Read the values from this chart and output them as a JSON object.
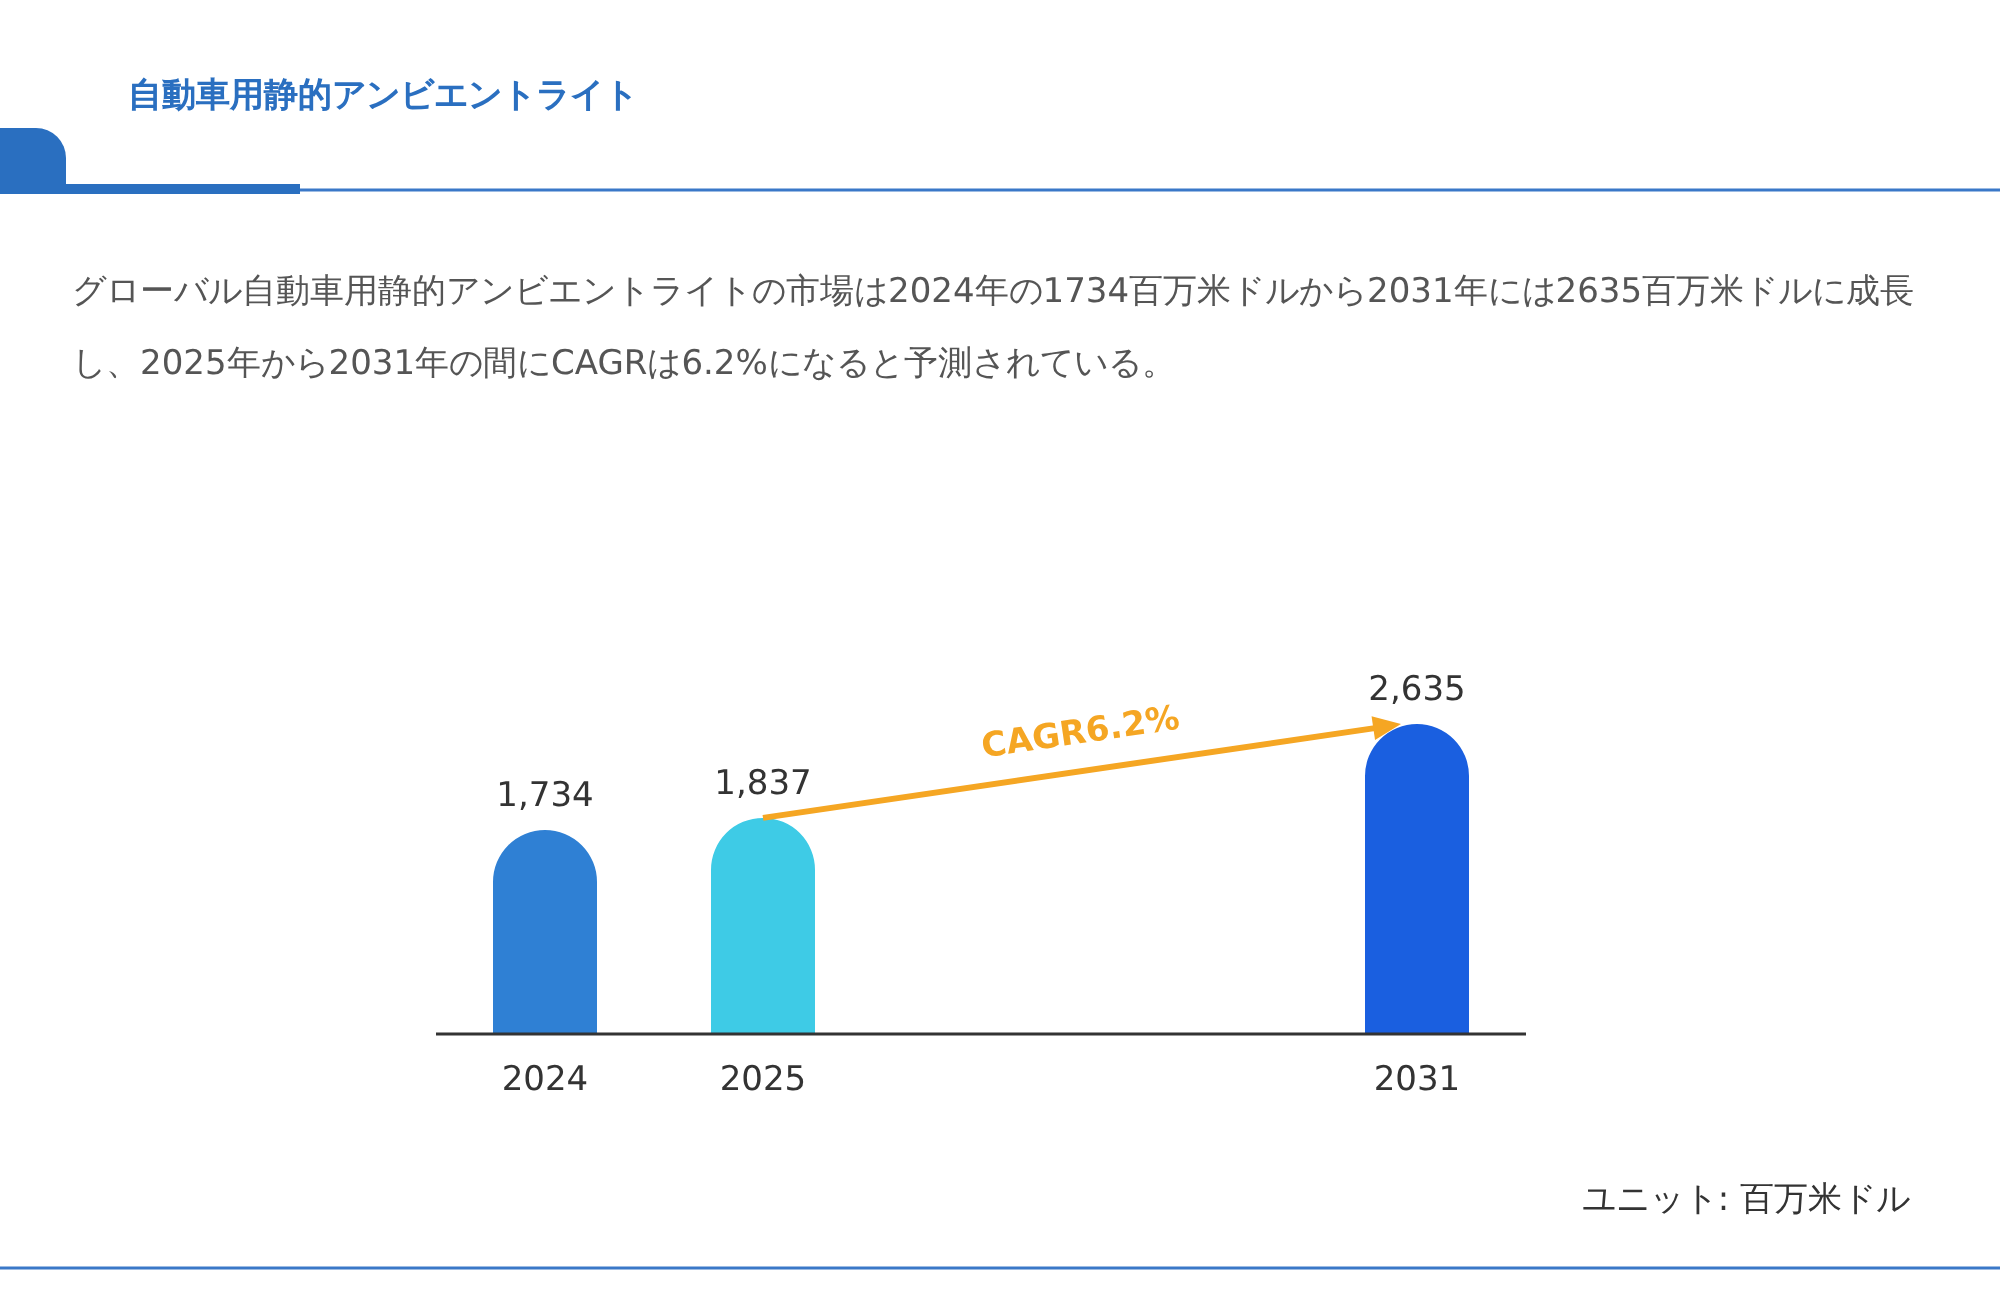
{
  "chart_data": {
    "type": "bar",
    "title": "自動車用静的アンビエントライト",
    "subtitle": "グローバル自動車用静的アンビエントライトの市場は2024年の1734百万米ドルから2031年には2635百万米ドルに成長し、2025年から2031年の間にCAGRは6.2%になると予測されている。",
    "categories": [
      "2024",
      "2025",
      null,
      null,
      "2031"
    ],
    "values": [
      1734,
      1837,
      null,
      null,
      2635
    ],
    "colors": [
      "#2f80d4",
      "#3ecbe6",
      null,
      null,
      "#1a5fe0"
    ],
    "value_labels": [
      "1,734",
      "1,837",
      null,
      null,
      "2,635"
    ],
    "annotations": [
      "CAGR6.2%",
      "ユニット: 百万米ドル"
    ]
  }
}
